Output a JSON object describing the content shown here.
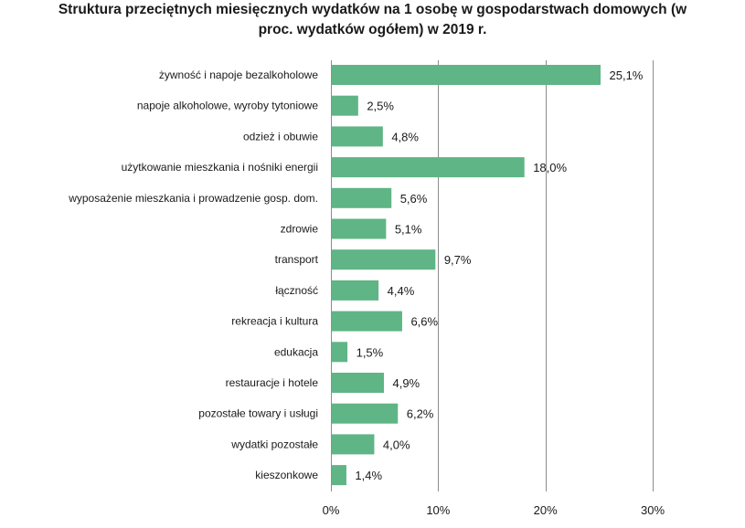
{
  "chart_data": {
    "type": "bar",
    "orientation": "horizontal",
    "title_lines": [
      "Struktura przeciętnych miesięcznych wydatków na 1 osobę w gospodarstwach domowych (w",
      "proc. wydatków ogółem) w 2019 r."
    ],
    "categories": [
      "żywność i napoje bezalkoholowe",
      "napoje alkoholowe, wyroby tytoniowe",
      "odzież i obuwie",
      "użytkowanie mieszkania i nośniki energii",
      "wyposażenie mieszkania i prowadzenie gosp. dom.",
      "zdrowie",
      "transport",
      "łączność",
      "rekreacja i kultura",
      "edukacja",
      "restauracje i hotele",
      "pozostałe towary i usługi",
      "wydatki pozostałe",
      "kieszonkowe"
    ],
    "values": [
      25.1,
      2.5,
      4.8,
      18.0,
      5.6,
      5.1,
      9.7,
      4.4,
      6.6,
      1.5,
      4.9,
      6.2,
      4.0,
      1.4
    ],
    "value_labels": [
      "25,1%",
      "2,5%",
      "4,8%",
      "18,0%",
      "5,6%",
      "5,1%",
      "9,7%",
      "4,4%",
      "6,6%",
      "1,5%",
      "4,9%",
      "6,2%",
      "4,0%",
      "1,4%"
    ],
    "x_ticks": [
      0,
      10,
      20,
      30
    ],
    "x_tick_labels": [
      "0%",
      "10%",
      "20%",
      "30%"
    ],
    "xlim": [
      0,
      30
    ],
    "xlabel": "",
    "ylabel": "",
    "grid": true,
    "bar_color": "#5fb585"
  }
}
